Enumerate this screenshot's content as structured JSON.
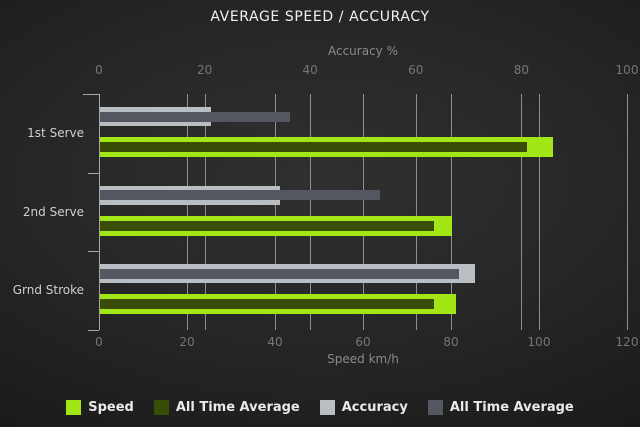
{
  "title": "AVERAGE SPEED / ACCURACY",
  "chart_data": {
    "type": "bar",
    "orientation": "horizontal",
    "title": "AVERAGE SPEED / ACCURACY",
    "categories": [
      "1st Serve",
      "2nd Serve",
      "Grnd Stroke"
    ],
    "axes": {
      "top": {
        "label": "Accuracy %",
        "min": 0,
        "max": 100,
        "ticks": [
          0,
          20,
          40,
          60,
          80,
          100
        ]
      },
      "bottom": {
        "label": "Speed km/h",
        "min": 0,
        "max": 120,
        "ticks": [
          0,
          20,
          40,
          60,
          80,
          100,
          120
        ]
      }
    },
    "series": [
      {
        "name": "Speed",
        "axis": "bottom",
        "role": "main",
        "color": "#a3e616",
        "values": [
          103,
          80,
          81
        ]
      },
      {
        "name": "All Time Average",
        "axis": "bottom",
        "role": "overlay",
        "color": "#394d07",
        "values": [
          97,
          76,
          76
        ]
      },
      {
        "name": "Accuracy",
        "axis": "top",
        "role": "main",
        "color": "#b9bec3",
        "values": [
          21,
          34,
          71
        ]
      },
      {
        "name": "All Time Average",
        "axis": "top",
        "role": "overlay",
        "color": "#535860",
        "values": [
          36,
          53,
          68
        ]
      }
    ],
    "grid": true,
    "legend_position": "bottom"
  },
  "colors": {
    "speed": "#a3e616",
    "speed_all_time_average": "#394d07",
    "accuracy": "#b9bec3",
    "accuracy_all_time_average": "#535860"
  }
}
